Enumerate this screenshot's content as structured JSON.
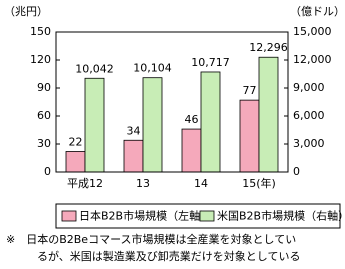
{
  "chart_data": {
    "type": "bar",
    "y_unit": "（兆円）",
    "y2_unit": "（億ドル）",
    "categories": [
      "平成12",
      "13",
      "14",
      "15(年)"
    ],
    "series": [
      {
        "name": "日本B2B市場規模（左軸）",
        "color": "#f5a9bb",
        "values": [
          22,
          34,
          46,
          77
        ]
      },
      {
        "name": "米国B2B市場規模（右軸）",
        "color": "#c8edb6",
        "axis": "y2",
        "values": [
          10042,
          10104,
          10717,
          12296
        ],
        "value_labels": [
          "10,042",
          "10,104",
          "10,717",
          "12,296"
        ]
      }
    ],
    "ylim": [
      0,
      150
    ],
    "yticks": [
      0,
      30,
      60,
      90,
      120,
      150
    ],
    "y2lim": [
      0,
      15000
    ],
    "y2ticks": [
      0,
      {
        "value": 3000,
        "label": "3,000"
      },
      {
        "value": 6000,
        "label": "6,000"
      },
      {
        "value": 9000,
        "label": "9,000"
      },
      {
        "value": 12000,
        "label": "12,000"
      },
      {
        "value": 15000,
        "label": "15,000"
      }
    ],
    "grid": false,
    "note": [
      "※　日本のB2Beコマース市場規模は全産業を対象としてい",
      "るが、米国は製造業及び卸売業だけを対象としている"
    ]
  }
}
